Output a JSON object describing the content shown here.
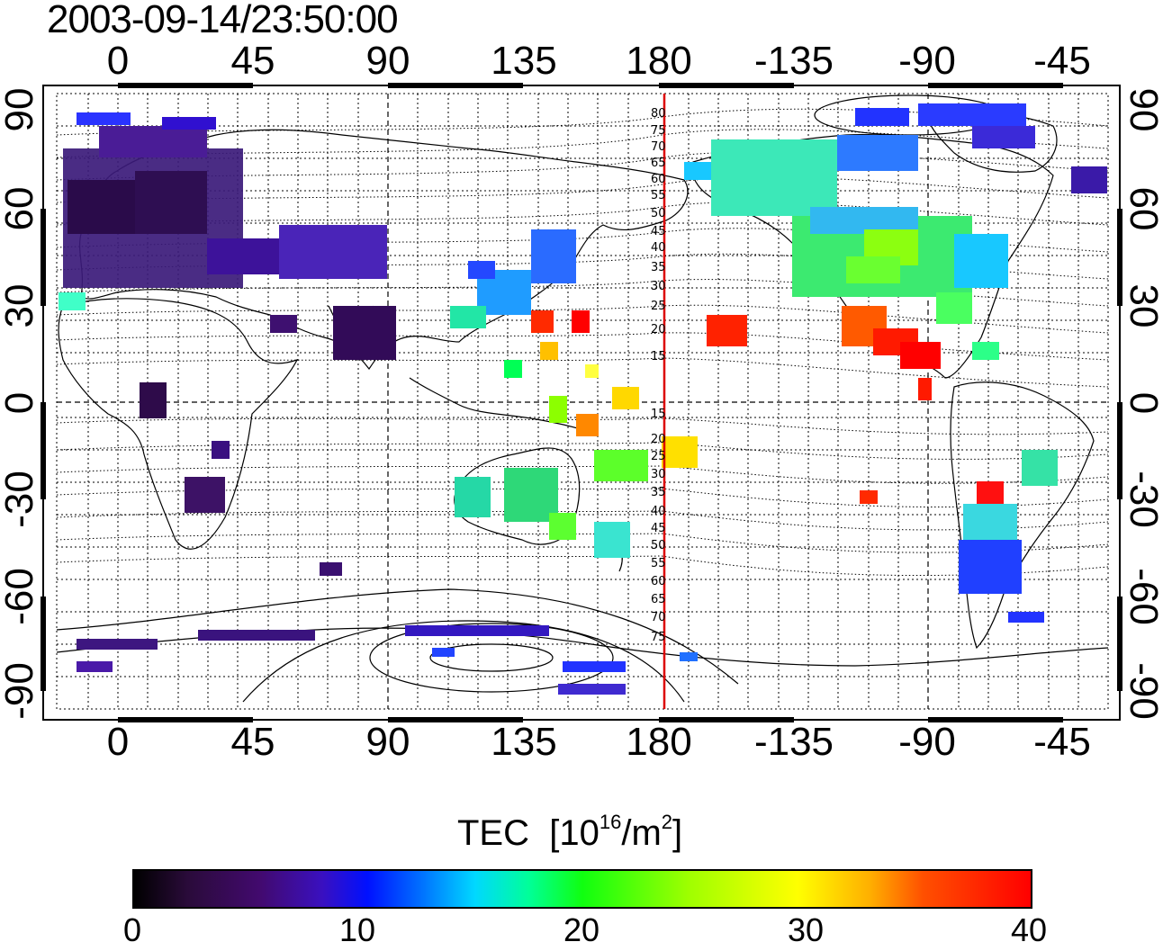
{
  "title": "2003-09-14/23:50:00",
  "axes": {
    "lon_ticks_top": [
      "0",
      "45",
      "90",
      "135",
      "180",
      "-135",
      "-90",
      "-45"
    ],
    "lon_ticks_bottom": [
      "0",
      "45",
      "90",
      "135",
      "180",
      "-135",
      "-90",
      "-45"
    ],
    "lat_ticks_left": [
      "90",
      "60",
      "30",
      "0",
      "-30",
      "-60",
      "-90"
    ],
    "lat_ticks_right": [
      "90",
      "60",
      "30",
      "0",
      "-30",
      "-60",
      "-90"
    ]
  },
  "meridian_labels": {
    "north": [
      "80",
      "75",
      "70",
      "65",
      "60",
      "55",
      "50",
      "45",
      "40",
      "35",
      "30",
      "25",
      "20",
      "15"
    ],
    "south": [
      "15",
      "20",
      "25",
      "30",
      "35",
      "40",
      "45",
      "50",
      "55",
      "60",
      "65",
      "70",
      "75"
    ]
  },
  "colorbar": {
    "title": "TEC",
    "unit_base": "[10",
    "unit_exp": "16",
    "unit_mid": "/m",
    "unit_exp2": "2",
    "unit_end": "]",
    "ticks": [
      "0",
      "10",
      "20",
      "30",
      "40"
    ],
    "min": 0,
    "max": 40
  },
  "colors": {
    "meridian_line": "#dd0000",
    "contour": "#000000",
    "grid": "#000000"
  }
}
